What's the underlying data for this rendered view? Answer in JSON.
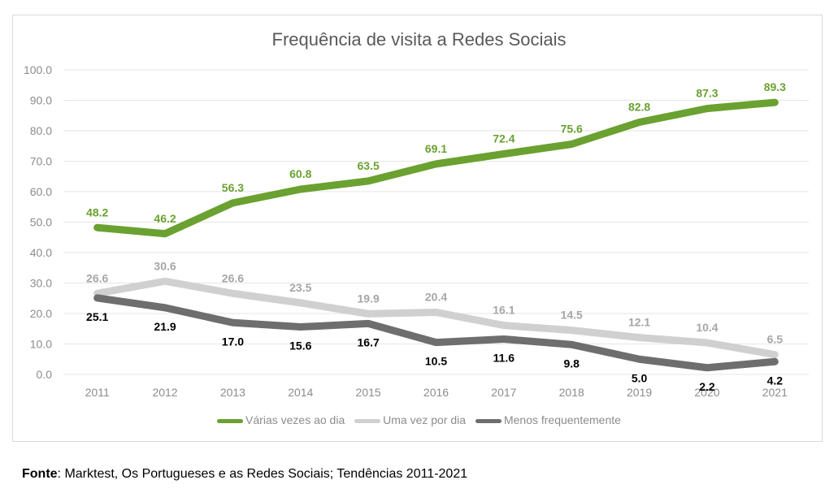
{
  "source": {
    "label": "Fonte",
    "text": ": Marktest, Os Portugueses e as Redes Sociais; Tendências 2011-2021"
  },
  "chart_data": {
    "type": "line",
    "title": "Frequência de visita a Redes Sociais",
    "xlabel": "",
    "ylabel": "",
    "categories": [
      "2011",
      "2012",
      "2013",
      "2014",
      "2015",
      "2016",
      "2017",
      "2018",
      "2019",
      "2020",
      "2021"
    ],
    "ylim": [
      0,
      100
    ],
    "yticks": [
      "0.0",
      "10.0",
      "20.0",
      "30.0",
      "40.0",
      "50.0",
      "60.0",
      "70.0",
      "80.0",
      "90.0",
      "100.0"
    ],
    "grid": true,
    "legend_position": "bottom",
    "series": [
      {
        "name": "Várias vezes ao dia",
        "color": "#6aa130",
        "label_color": "#6aa130",
        "label_side": "above",
        "values": [
          48.2,
          46.2,
          56.3,
          60.8,
          63.5,
          69.1,
          72.4,
          75.6,
          82.8,
          87.3,
          89.3
        ],
        "labels": [
          "48.2",
          "46.2",
          "56.3",
          "60.8",
          "63.5",
          "69.1",
          "72.4",
          "75.6",
          "82.8",
          "87.3",
          "89.3"
        ]
      },
      {
        "name": "Uma vez por dia",
        "color": "#d0d0d0",
        "label_color": "#a6a6a6",
        "label_side": "above",
        "values": [
          26.6,
          30.6,
          26.6,
          23.5,
          19.9,
          20.4,
          16.1,
          14.5,
          12.1,
          10.4,
          6.5
        ],
        "labels": [
          "26.6",
          "30.6",
          "26.6",
          "23.5",
          "19.9",
          "20.4",
          "16.1",
          "14.5",
          "12.1",
          "10.4",
          "6.5"
        ]
      },
      {
        "name": "Menos frequentemente",
        "color": "#6e6e6e",
        "label_color": "#000000",
        "label_side": "below",
        "values": [
          25.1,
          21.9,
          17.0,
          15.6,
          16.7,
          10.5,
          11.6,
          9.8,
          5.0,
          2.2,
          4.2
        ],
        "labels": [
          "25.1",
          "21.9",
          "17.0",
          "15.6",
          "16.7",
          "10.5",
          "11.6",
          "9.8",
          "5.0",
          "2.2",
          "4.2"
        ]
      }
    ]
  }
}
